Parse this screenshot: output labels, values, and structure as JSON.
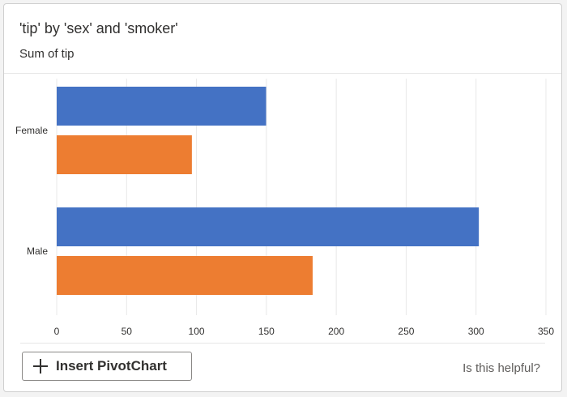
{
  "card": {
    "title": "'tip' by 'sex' and 'smoker'",
    "subtitle": "Sum of tip",
    "insert_button_label": "Insert PivotChart",
    "helpful_link": "Is this helpful?"
  },
  "colors": {
    "series_1": "#4472c4",
    "series_2": "#ed7d31",
    "gridline": "#e8e8e8"
  },
  "chart_data": {
    "type": "bar",
    "orientation": "horizontal",
    "title": "'tip' by 'sex' and 'smoker'",
    "subtitle": "Sum of tip",
    "categories": [
      "Female",
      "Male"
    ],
    "series": [
      {
        "values": [
          149.8,
          302.0
        ]
      },
      {
        "values": [
          96.7,
          183.1
        ]
      }
    ],
    "xlim": [
      0,
      350
    ],
    "xticks": [
      0,
      50,
      100,
      150,
      200,
      250,
      300,
      350
    ],
    "grid": true,
    "legend": "none"
  }
}
